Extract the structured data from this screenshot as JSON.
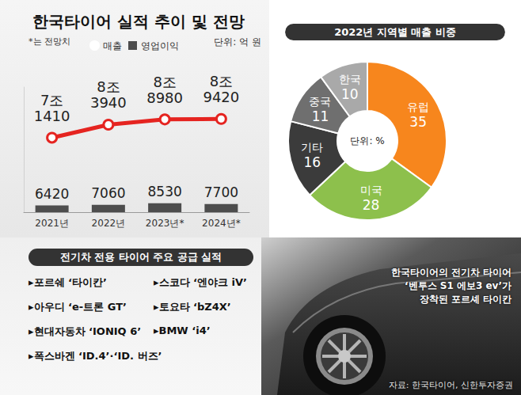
{
  "chart_data": [
    {
      "type": "bar",
      "title": "한국타이어 실적 추이 및 전망",
      "note": "*는 전망치",
      "unit": "단위: 억 원",
      "categories": [
        "2021년",
        "2022년",
        "2023년*",
        "2024년*"
      ],
      "series": [
        {
          "name": "매출",
          "type": "line",
          "color": "#e52420",
          "marker": "circle",
          "values": [
            71410,
            83940,
            88980,
            89420
          ],
          "value_labels": [
            "7조 1410",
            "8조 3940",
            "8조 8980",
            "8조 9420"
          ]
        },
        {
          "name": "영업이익",
          "type": "bar",
          "color": "#4d4d4d",
          "values": [
            6420,
            7060,
            8530,
            7700
          ]
        }
      ],
      "ylim": [
        0,
        120000
      ],
      "grid": false,
      "legend": "top",
      "data_labels": true,
      "tick_labels": "x"
    },
    {
      "type": "pie",
      "title": "2022년 지역별 매출 비중",
      "center_label": "단위: %",
      "categories": [
        "유럽",
        "미국",
        "기타",
        "중국",
        "한국"
      ],
      "values": [
        35,
        28,
        16,
        11,
        10
      ],
      "colors": [
        "#f7861d",
        "#8dc04c",
        "#3b3b3b",
        "#6f6f6f",
        "#a9a9a9"
      ],
      "data_labels": true
    }
  ],
  "ev_tire_supply": {
    "title": "전기차 전용 타이어 주요 공급 실적",
    "items": [
      "▸포르쉐 ‘타이칸’",
      "▸스코다 ‘엔야크 iV’",
      "▸아우디 ‘e-트론 GT’",
      "▸토요타 ‘bZ4X’",
      "▸현대자동차 ‘IONIQ 6’",
      "▸BMW ‘i4’",
      "▸폭스바겐 ‘ID.4’·‘ID. 버즈’"
    ]
  },
  "photo_caption": [
    "한국타이어의 전기차 타이어",
    "‘벤투스 S1 에보3 ev’가",
    "장착된 포르셰 타이칸"
  ],
  "source": "자료: 한국타이어, 신한투자증권"
}
